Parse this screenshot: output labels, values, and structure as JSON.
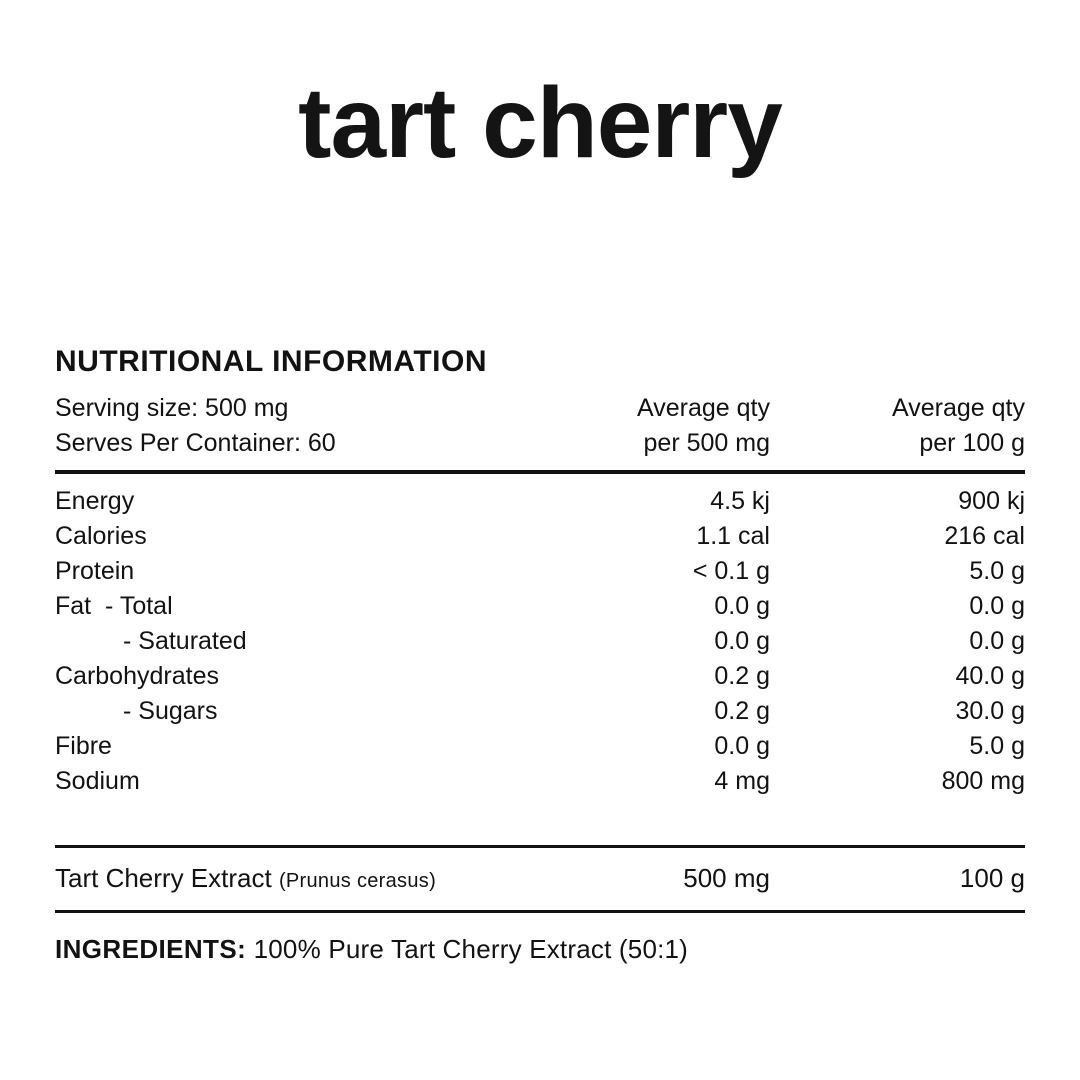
{
  "brand": {
    "logo_text": "tart cherry"
  },
  "nutrition": {
    "title": "NUTRITIONAL INFORMATION",
    "serving_size": "Serving size: 500 mg",
    "serves_per_container": "Serves Per Container: 60",
    "columns": [
      {
        "line1": "Average qty",
        "line2": "per 500 mg"
      },
      {
        "line1": "Average qty",
        "line2": "per 100 g"
      }
    ],
    "rows": [
      {
        "label": "Energy",
        "indent": false,
        "per_serve": "4.5 kj",
        "per_100": "900 kj"
      },
      {
        "label": "Calories",
        "indent": false,
        "per_serve": "1.1 cal",
        "per_100": "216 cal"
      },
      {
        "label": "Protein",
        "indent": false,
        "per_serve": "< 0.1 g",
        "per_100": "5.0 g"
      },
      {
        "label": "Fat  - Total",
        "indent": false,
        "per_serve": "0.0 g",
        "per_100": "0.0 g"
      },
      {
        "label": "- Saturated",
        "indent": true,
        "per_serve": "0.0 g",
        "per_100": "0.0 g"
      },
      {
        "label": "Carbohydrates",
        "indent": false,
        "per_serve": "0.2 g",
        "per_100": "40.0 g"
      },
      {
        "label": "- Sugars",
        "indent": true,
        "per_serve": "0.2 g",
        "per_100": "30.0 g"
      },
      {
        "label": "Fibre",
        "indent": false,
        "per_serve": "0.0 g",
        "per_100": "5.0 g"
      },
      {
        "label": "Sodium",
        "indent": false,
        "per_serve": "4 mg",
        "per_100": "800 mg"
      }
    ],
    "extract_row": {
      "name": "Tart Cherry Extract",
      "latin": "(Prunus cerasus)",
      "per_serve": "500 mg",
      "per_100": "100 g"
    },
    "ingredients_label": "INGREDIENTS:",
    "ingredients_text": "100% Pure Tart Cherry Extract (50:1)"
  }
}
